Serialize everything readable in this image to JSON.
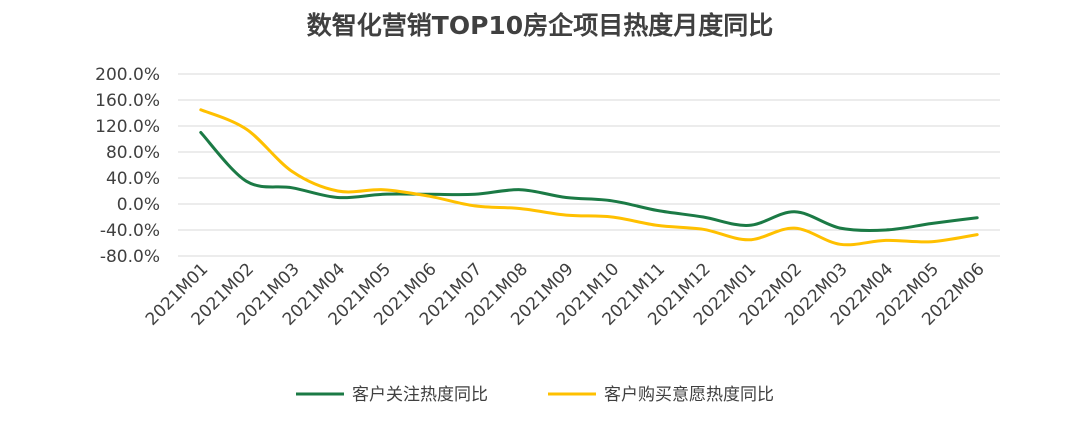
{
  "chart_data": {
    "type": "line",
    "title": "数智化营销TOP10房企项目热度月度同比",
    "xlabel": "",
    "ylabel": "",
    "categories": [
      "2021M01",
      "2021M02",
      "2021M03",
      "2021M04",
      "2021M05",
      "2021M06",
      "2021M07",
      "2021M08",
      "2021M09",
      "2021M10",
      "2021M11",
      "2021M12",
      "2022M01",
      "2022M02",
      "2022M03",
      "2022M04",
      "2022M05",
      "2022M06"
    ],
    "y_ticks": [
      "200.0%",
      "160.0%",
      "120.0%",
      "80.0%",
      "40.0%",
      "0.0%",
      "-40.0%",
      "-80.0%"
    ],
    "ylim": [
      -80,
      200
    ],
    "grid": true,
    "legend_position": "bottom",
    "series": [
      {
        "name": "客户关注热度同比",
        "color": "#1b7a45",
        "values": [
          110,
          35,
          25,
          10,
          15,
          15,
          15,
          22,
          10,
          5,
          -10,
          -20,
          -33,
          -12,
          -37,
          -40,
          -30,
          -21
        ]
      },
      {
        "name": "客户购买意愿热度同比",
        "color": "#ffc000",
        "values": [
          145,
          115,
          50,
          20,
          22,
          12,
          -3,
          -7,
          -17,
          -20,
          -33,
          -39,
          -55,
          -37,
          -62,
          -56,
          -58,
          -47
        ]
      }
    ]
  }
}
